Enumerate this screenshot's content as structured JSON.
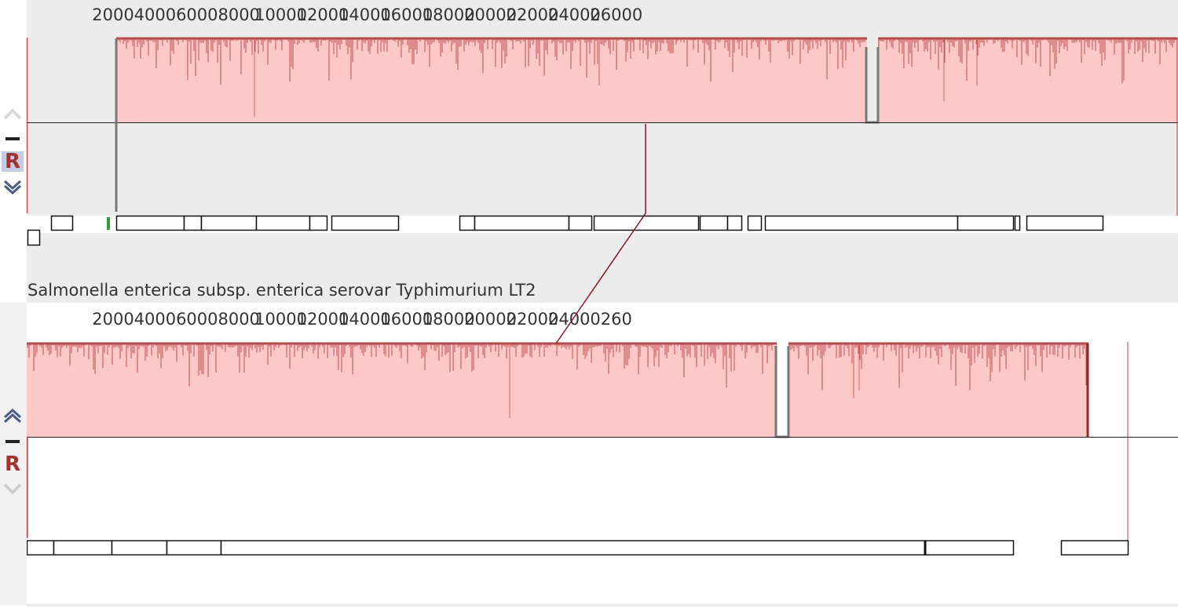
{
  "genomes": [
    {
      "id": "top",
      "name": "",
      "ticks": [
        "2000",
        "4000",
        "6000",
        "8000",
        "10000",
        "12000",
        "14000",
        "16000",
        "18000",
        "20000",
        "22000",
        "24000",
        "26000"
      ],
      "controls": {
        "up": "chevron-up-icon",
        "minus": "minus-icon",
        "reverse": "R",
        "down": "chevron-down-icon"
      }
    },
    {
      "id": "bottom",
      "name": "Salmonella enterica subsp. enterica serovar Typhimurium LT2",
      "ticks": [
        "2000",
        "4000",
        "6000",
        "8000",
        "10000",
        "12000",
        "14000",
        "16000",
        "18000",
        "20000",
        "22000",
        "24000",
        "260"
      ],
      "controls": {
        "up": "chevron-up-icon",
        "minus": "minus-icon",
        "reverse": "R",
        "down": "chevron-down-icon"
      }
    }
  ],
  "colors": {
    "block_fill": "#fcc8c8",
    "block_edge": "#b24a4a",
    "connector": "#8b1a1a",
    "gray_track": "#ececec",
    "reverse": "#a0342c"
  }
}
